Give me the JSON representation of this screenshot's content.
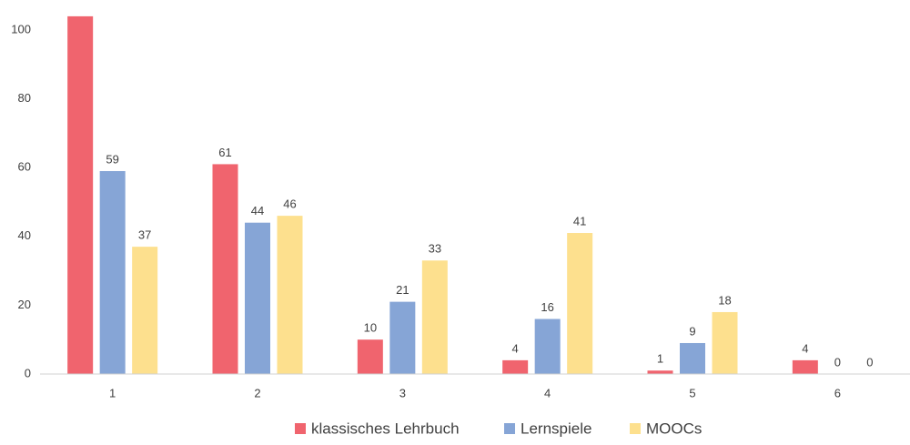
{
  "chart_data": {
    "type": "bar",
    "categories": [
      "1",
      "2",
      "3",
      "4",
      "5",
      "6"
    ],
    "series": [
      {
        "name": "klassisches Lehrbuch",
        "color": "#f0646e",
        "values": [
          104,
          61,
          10,
          4,
          1,
          4
        ]
      },
      {
        "name": "Lernspiele",
        "color": "#86a5d6",
        "values": [
          59,
          44,
          21,
          16,
          9,
          0
        ]
      },
      {
        "name": "MOOCs",
        "color": "#fde08e",
        "values": [
          37,
          46,
          33,
          41,
          18,
          0
        ]
      }
    ],
    "ylim": [
      0,
      104
    ],
    "yticks": [
      0,
      20,
      40,
      60,
      80,
      100
    ],
    "grid": false,
    "data_labels": true,
    "legend": "bottom"
  }
}
